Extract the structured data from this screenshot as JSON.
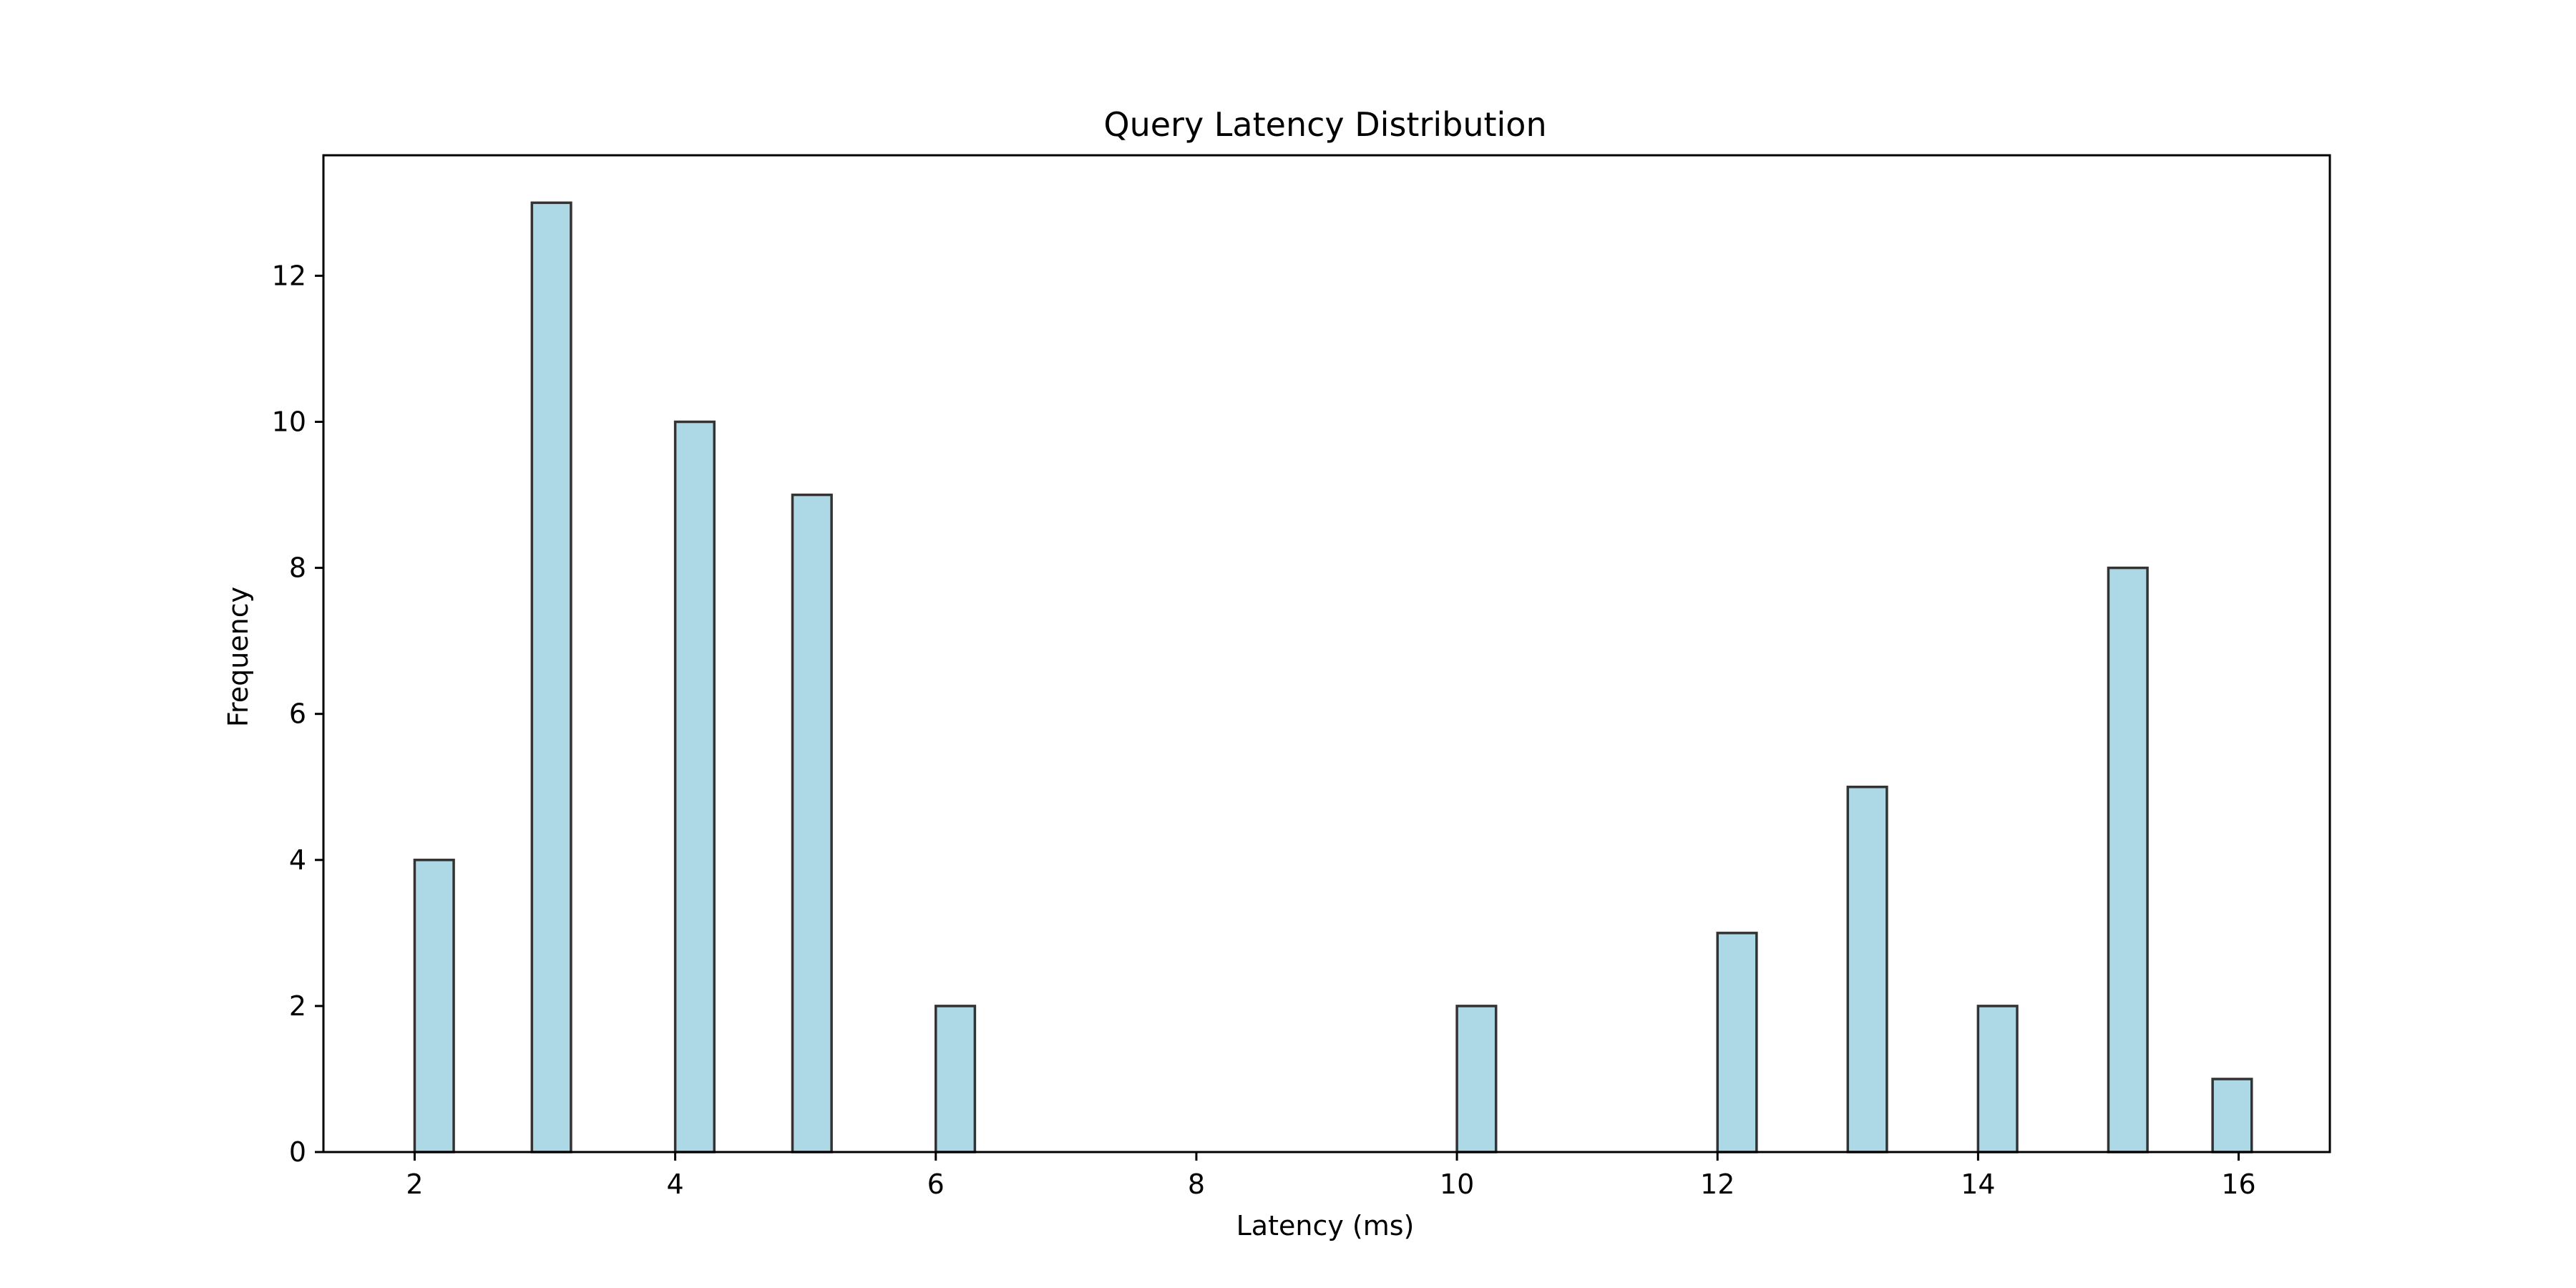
{
  "chart_data": {
    "type": "bar",
    "title": "Query Latency Distribution",
    "xlabel": "Latency (ms)",
    "ylabel": "Frequency",
    "bin_width": 0.3,
    "bins": [
      {
        "start": 2.0,
        "end": 2.3,
        "count": 4
      },
      {
        "start": 2.9,
        "end": 3.2,
        "count": 13
      },
      {
        "start": 4.0,
        "end": 4.3,
        "count": 10
      },
      {
        "start": 4.9,
        "end": 5.2,
        "count": 9
      },
      {
        "start": 6.0,
        "end": 6.3,
        "count": 2
      },
      {
        "start": 10.0,
        "end": 10.3,
        "count": 2
      },
      {
        "start": 12.0,
        "end": 12.3,
        "count": 3
      },
      {
        "start": 13.0,
        "end": 13.3,
        "count": 5
      },
      {
        "start": 14.0,
        "end": 14.3,
        "count": 2
      },
      {
        "start": 15.0,
        "end": 15.3,
        "count": 8
      },
      {
        "start": 15.8,
        "end": 16.1,
        "count": 1
      }
    ],
    "xlim": [
      1.3,
      16.7
    ],
    "ylim": [
      0,
      13.65
    ],
    "xticks": [
      2,
      4,
      6,
      8,
      10,
      12,
      14,
      16
    ],
    "yticks": [
      0,
      2,
      4,
      6,
      8,
      10,
      12
    ],
    "grid": false,
    "colors": {
      "bar_fill": "#add8e6",
      "bar_edge": "#333333",
      "axis": "#000000"
    }
  }
}
